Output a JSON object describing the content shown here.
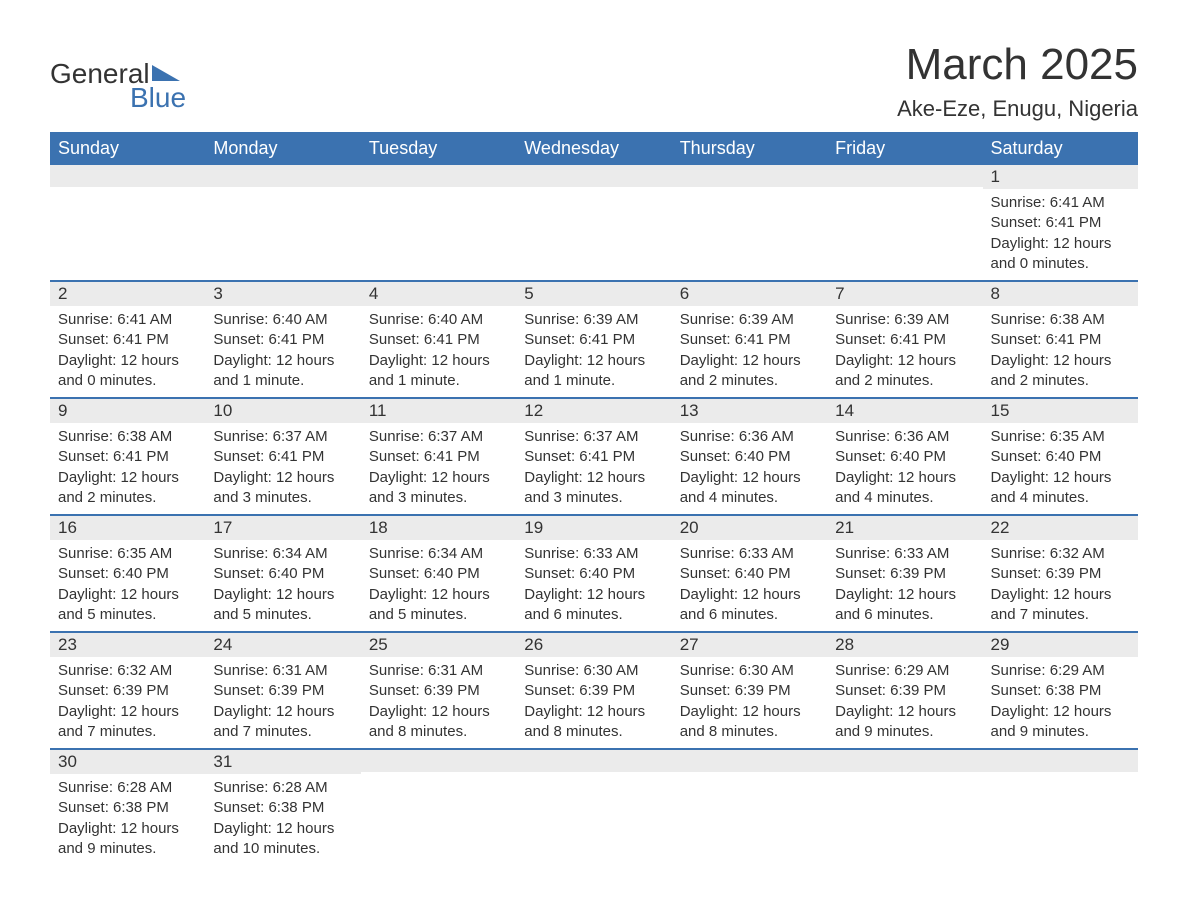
{
  "logo": {
    "text1": "General",
    "text2": "Blue"
  },
  "title": "March 2025",
  "location": "Ake-Eze, Enugu, Nigeria",
  "colors": {
    "header_bg": "#3b72b0",
    "header_text": "#ffffff",
    "daynum_bg": "#ebebeb",
    "border": "#3b72b0",
    "text": "#333333"
  },
  "weekdays": [
    "Sunday",
    "Monday",
    "Tuesday",
    "Wednesday",
    "Thursday",
    "Friday",
    "Saturday"
  ],
  "weeks": [
    [
      null,
      null,
      null,
      null,
      null,
      null,
      {
        "n": "1",
        "sunrise": "Sunrise: 6:41 AM",
        "sunset": "Sunset: 6:41 PM",
        "daylight1": "Daylight: 12 hours",
        "daylight2": "and 0 minutes."
      }
    ],
    [
      {
        "n": "2",
        "sunrise": "Sunrise: 6:41 AM",
        "sunset": "Sunset: 6:41 PM",
        "daylight1": "Daylight: 12 hours",
        "daylight2": "and 0 minutes."
      },
      {
        "n": "3",
        "sunrise": "Sunrise: 6:40 AM",
        "sunset": "Sunset: 6:41 PM",
        "daylight1": "Daylight: 12 hours",
        "daylight2": "and 1 minute."
      },
      {
        "n": "4",
        "sunrise": "Sunrise: 6:40 AM",
        "sunset": "Sunset: 6:41 PM",
        "daylight1": "Daylight: 12 hours",
        "daylight2": "and 1 minute."
      },
      {
        "n": "5",
        "sunrise": "Sunrise: 6:39 AM",
        "sunset": "Sunset: 6:41 PM",
        "daylight1": "Daylight: 12 hours",
        "daylight2": "and 1 minute."
      },
      {
        "n": "6",
        "sunrise": "Sunrise: 6:39 AM",
        "sunset": "Sunset: 6:41 PM",
        "daylight1": "Daylight: 12 hours",
        "daylight2": "and 2 minutes."
      },
      {
        "n": "7",
        "sunrise": "Sunrise: 6:39 AM",
        "sunset": "Sunset: 6:41 PM",
        "daylight1": "Daylight: 12 hours",
        "daylight2": "and 2 minutes."
      },
      {
        "n": "8",
        "sunrise": "Sunrise: 6:38 AM",
        "sunset": "Sunset: 6:41 PM",
        "daylight1": "Daylight: 12 hours",
        "daylight2": "and 2 minutes."
      }
    ],
    [
      {
        "n": "9",
        "sunrise": "Sunrise: 6:38 AM",
        "sunset": "Sunset: 6:41 PM",
        "daylight1": "Daylight: 12 hours",
        "daylight2": "and 2 minutes."
      },
      {
        "n": "10",
        "sunrise": "Sunrise: 6:37 AM",
        "sunset": "Sunset: 6:41 PM",
        "daylight1": "Daylight: 12 hours",
        "daylight2": "and 3 minutes."
      },
      {
        "n": "11",
        "sunrise": "Sunrise: 6:37 AM",
        "sunset": "Sunset: 6:41 PM",
        "daylight1": "Daylight: 12 hours",
        "daylight2": "and 3 minutes."
      },
      {
        "n": "12",
        "sunrise": "Sunrise: 6:37 AM",
        "sunset": "Sunset: 6:41 PM",
        "daylight1": "Daylight: 12 hours",
        "daylight2": "and 3 minutes."
      },
      {
        "n": "13",
        "sunrise": "Sunrise: 6:36 AM",
        "sunset": "Sunset: 6:40 PM",
        "daylight1": "Daylight: 12 hours",
        "daylight2": "and 4 minutes."
      },
      {
        "n": "14",
        "sunrise": "Sunrise: 6:36 AM",
        "sunset": "Sunset: 6:40 PM",
        "daylight1": "Daylight: 12 hours",
        "daylight2": "and 4 minutes."
      },
      {
        "n": "15",
        "sunrise": "Sunrise: 6:35 AM",
        "sunset": "Sunset: 6:40 PM",
        "daylight1": "Daylight: 12 hours",
        "daylight2": "and 4 minutes."
      }
    ],
    [
      {
        "n": "16",
        "sunrise": "Sunrise: 6:35 AM",
        "sunset": "Sunset: 6:40 PM",
        "daylight1": "Daylight: 12 hours",
        "daylight2": "and 5 minutes."
      },
      {
        "n": "17",
        "sunrise": "Sunrise: 6:34 AM",
        "sunset": "Sunset: 6:40 PM",
        "daylight1": "Daylight: 12 hours",
        "daylight2": "and 5 minutes."
      },
      {
        "n": "18",
        "sunrise": "Sunrise: 6:34 AM",
        "sunset": "Sunset: 6:40 PM",
        "daylight1": "Daylight: 12 hours",
        "daylight2": "and 5 minutes."
      },
      {
        "n": "19",
        "sunrise": "Sunrise: 6:33 AM",
        "sunset": "Sunset: 6:40 PM",
        "daylight1": "Daylight: 12 hours",
        "daylight2": "and 6 minutes."
      },
      {
        "n": "20",
        "sunrise": "Sunrise: 6:33 AM",
        "sunset": "Sunset: 6:40 PM",
        "daylight1": "Daylight: 12 hours",
        "daylight2": "and 6 minutes."
      },
      {
        "n": "21",
        "sunrise": "Sunrise: 6:33 AM",
        "sunset": "Sunset: 6:39 PM",
        "daylight1": "Daylight: 12 hours",
        "daylight2": "and 6 minutes."
      },
      {
        "n": "22",
        "sunrise": "Sunrise: 6:32 AM",
        "sunset": "Sunset: 6:39 PM",
        "daylight1": "Daylight: 12 hours",
        "daylight2": "and 7 minutes."
      }
    ],
    [
      {
        "n": "23",
        "sunrise": "Sunrise: 6:32 AM",
        "sunset": "Sunset: 6:39 PM",
        "daylight1": "Daylight: 12 hours",
        "daylight2": "and 7 minutes."
      },
      {
        "n": "24",
        "sunrise": "Sunrise: 6:31 AM",
        "sunset": "Sunset: 6:39 PM",
        "daylight1": "Daylight: 12 hours",
        "daylight2": "and 7 minutes."
      },
      {
        "n": "25",
        "sunrise": "Sunrise: 6:31 AM",
        "sunset": "Sunset: 6:39 PM",
        "daylight1": "Daylight: 12 hours",
        "daylight2": "and 8 minutes."
      },
      {
        "n": "26",
        "sunrise": "Sunrise: 6:30 AM",
        "sunset": "Sunset: 6:39 PM",
        "daylight1": "Daylight: 12 hours",
        "daylight2": "and 8 minutes."
      },
      {
        "n": "27",
        "sunrise": "Sunrise: 6:30 AM",
        "sunset": "Sunset: 6:39 PM",
        "daylight1": "Daylight: 12 hours",
        "daylight2": "and 8 minutes."
      },
      {
        "n": "28",
        "sunrise": "Sunrise: 6:29 AM",
        "sunset": "Sunset: 6:39 PM",
        "daylight1": "Daylight: 12 hours",
        "daylight2": "and 9 minutes."
      },
      {
        "n": "29",
        "sunrise": "Sunrise: 6:29 AM",
        "sunset": "Sunset: 6:38 PM",
        "daylight1": "Daylight: 12 hours",
        "daylight2": "and 9 minutes."
      }
    ],
    [
      {
        "n": "30",
        "sunrise": "Sunrise: 6:28 AM",
        "sunset": "Sunset: 6:38 PM",
        "daylight1": "Daylight: 12 hours",
        "daylight2": "and 9 minutes."
      },
      {
        "n": "31",
        "sunrise": "Sunrise: 6:28 AM",
        "sunset": "Sunset: 6:38 PM",
        "daylight1": "Daylight: 12 hours",
        "daylight2": "and 10 minutes."
      },
      null,
      null,
      null,
      null,
      null
    ]
  ]
}
